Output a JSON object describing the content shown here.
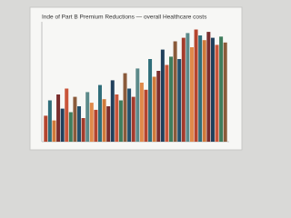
{
  "chart_data": {
    "type": "bar",
    "title": "Inde of Part B Premium Reductions — overall Healthcare costs",
    "values": [
      22,
      35,
      18,
      40,
      28,
      45,
      25,
      38,
      30,
      20,
      42,
      33,
      27,
      48,
      36,
      30,
      52,
      40,
      35,
      58,
      45,
      38,
      62,
      50,
      44,
      70,
      55,
      60,
      78,
      65,
      72,
      85,
      70,
      88,
      92,
      80,
      95,
      90,
      86,
      93,
      88,
      82,
      89,
      84
    ],
    "colors": [
      "#b5452e",
      "#2f6e7a",
      "#d07a3a",
      "#7a2e2e",
      "#1f3f5b",
      "#c9553a",
      "#3f7d5c",
      "#8a5a3a",
      "#24506b",
      "#a33b2b",
      "#5c8a8a",
      "#e08a4a"
    ],
    "ylim": [
      0,
      100
    ]
  }
}
